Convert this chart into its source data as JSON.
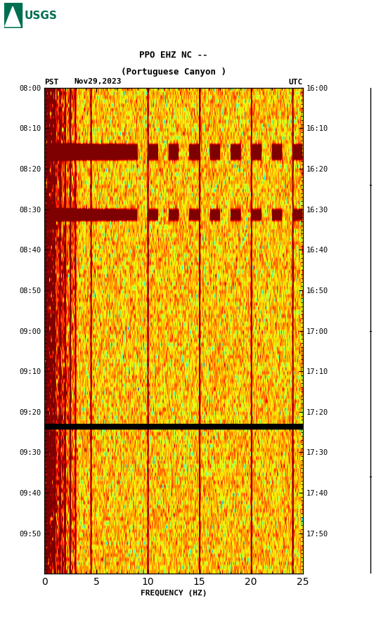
{
  "title_line1": "PPO EHZ NC --",
  "title_line2": "(Portuguese Canyon )",
  "left_label": "PST",
  "date_label": "Nov29,2023",
  "right_label": "UTC",
  "left_times": [
    "08:00",
    "08:10",
    "08:20",
    "08:30",
    "08:40",
    "08:50",
    "09:00",
    "09:10",
    "09:20",
    "09:30",
    "09:40",
    "09:50"
  ],
  "right_times": [
    "16:00",
    "16:10",
    "16:20",
    "16:30",
    "16:40",
    "16:50",
    "17:00",
    "17:10",
    "17:20",
    "17:30",
    "17:40",
    "17:50"
  ],
  "freq_min": 0,
  "freq_max": 25,
  "freq_ticks": [
    0,
    5,
    10,
    15,
    20,
    25
  ],
  "freq_label": "FREQUENCY (HZ)",
  "n_time": 120,
  "n_freq": 500,
  "fig_width": 5.52,
  "fig_height": 8.92,
  "dpi": 100,
  "background_color": "#ffffff",
  "colormap": "jet",
  "usgs_logo_color": "#006E51",
  "black_band_minute": 83,
  "event1_minute": 14,
  "event1_duration": 3,
  "event2_minute": 30,
  "event2_duration": 2,
  "seed": 1234
}
